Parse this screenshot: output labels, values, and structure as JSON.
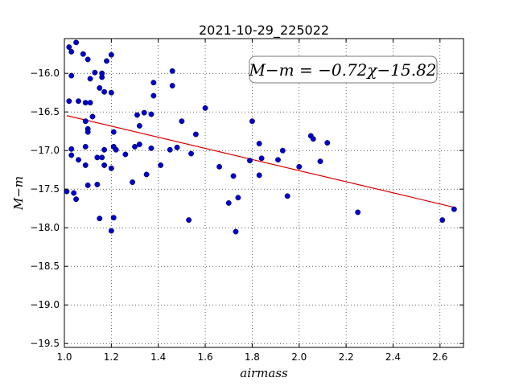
{
  "chart_data": {
    "type": "scatter",
    "title": "2021-10-29_225022",
    "xlabel": "airmass",
    "ylabel": "M−m",
    "xlim": [
      1.0,
      2.7
    ],
    "ylim": [
      -19.55,
      -15.55
    ],
    "x_ticks": [
      1.0,
      1.2,
      1.4,
      1.6,
      1.8,
      2.0,
      2.2,
      2.4,
      2.6
    ],
    "x_tick_labels": [
      "1.0",
      "1.2",
      "1.4",
      "1.6",
      "1.8",
      "2.0",
      "2.2",
      "2.4",
      "2.6"
    ],
    "y_ticks": [
      -16.0,
      -16.5,
      -17.0,
      -17.5,
      -18.0,
      -18.5,
      -19.0,
      -19.5
    ],
    "y_tick_labels": [
      "−16.0",
      "−16.5",
      "−17.0",
      "−17.5",
      "−18.0",
      "−18.5",
      "−19.0",
      "−19.5"
    ],
    "grid": true,
    "point_color": "#0000cc",
    "fit_color": "#dd0000",
    "annotation": "M−m = −0.72χ−15.82",
    "fit": {
      "slope": -0.72,
      "intercept": -15.82,
      "x_range": [
        1.01,
        2.66
      ]
    },
    "points": [
      [
        1.01,
        -17.53
      ],
      [
        1.02,
        -16.36
      ],
      [
        1.02,
        -15.66
      ],
      [
        1.03,
        -15.72
      ],
      [
        1.03,
        -16.03
      ],
      [
        1.03,
        -16.98
      ],
      [
        1.03,
        -17.06
      ],
      [
        1.04,
        -17.55
      ],
      [
        1.05,
        -17.63
      ],
      [
        1.05,
        -15.6
      ],
      [
        1.06,
        -16.36
      ],
      [
        1.06,
        -17.12
      ],
      [
        1.08,
        -15.75
      ],
      [
        1.09,
        -16.38
      ],
      [
        1.09,
        -16.62
      ],
      [
        1.09,
        -16.95
      ],
      [
        1.09,
        -17.19
      ],
      [
        1.1,
        -15.82
      ],
      [
        1.1,
        -16.72
      ],
      [
        1.1,
        -16.76
      ],
      [
        1.1,
        -17.45
      ],
      [
        1.11,
        -16.38
      ],
      [
        1.11,
        -16.07
      ],
      [
        1.12,
        -16.56
      ],
      [
        1.13,
        -15.99
      ],
      [
        1.14,
        -17.09
      ],
      [
        1.14,
        -17.44
      ],
      [
        1.15,
        -17.88
      ],
      [
        1.15,
        -16.19
      ],
      [
        1.16,
        -16.05
      ],
      [
        1.16,
        -16.0
      ],
      [
        1.16,
        -17.09
      ],
      [
        1.17,
        -16.99
      ],
      [
        1.17,
        -17.19
      ],
      [
        1.17,
        -16.24
      ],
      [
        1.18,
        -15.84
      ],
      [
        1.2,
        -15.76
      ],
      [
        1.2,
        -16.25
      ],
      [
        1.2,
        -17.23
      ],
      [
        1.2,
        -18.04
      ],
      [
        1.21,
        -17.87
      ],
      [
        1.21,
        -16.76
      ],
      [
        1.21,
        -16.95
      ],
      [
        1.22,
        -16.99
      ],
      [
        1.26,
        -17.05
      ],
      [
        1.29,
        -17.41
      ],
      [
        1.3,
        -16.95
      ],
      [
        1.31,
        -16.54
      ],
      [
        1.32,
        -16.92
      ],
      [
        1.32,
        -16.68
      ],
      [
        1.34,
        -16.51
      ],
      [
        1.35,
        -17.31
      ],
      [
        1.37,
        -16.97
      ],
      [
        1.37,
        -16.53
      ],
      [
        1.38,
        -16.12
      ],
      [
        1.38,
        -16.29
      ],
      [
        1.41,
        -17.19
      ],
      [
        1.45,
        -16.99
      ],
      [
        1.46,
        -15.97
      ],
      [
        1.46,
        -16.16
      ],
      [
        1.48,
        -16.96
      ],
      [
        1.5,
        -16.62
      ],
      [
        1.53,
        -17.9
      ],
      [
        1.54,
        -17.04
      ],
      [
        1.56,
        -16.79
      ],
      [
        1.6,
        -16.45
      ],
      [
        1.66,
        -17.21
      ],
      [
        1.7,
        -17.68
      ],
      [
        1.72,
        -17.33
      ],
      [
        1.73,
        -18.05
      ],
      [
        1.74,
        -17.61
      ],
      [
        1.79,
        -17.13
      ],
      [
        1.8,
        -16.62
      ],
      [
        1.83,
        -17.32
      ],
      [
        1.83,
        -16.91
      ],
      [
        1.84,
        -17.1
      ],
      [
        1.91,
        -17.12
      ],
      [
        1.93,
        -17.0
      ],
      [
        1.95,
        -17.59
      ],
      [
        2.0,
        -17.21
      ],
      [
        2.05,
        -16.81
      ],
      [
        2.06,
        -16.85
      ],
      [
        2.09,
        -17.14
      ],
      [
        2.12,
        -16.9
      ],
      [
        2.25,
        -17.8
      ],
      [
        2.61,
        -17.9
      ],
      [
        2.66,
        -17.76
      ]
    ]
  }
}
